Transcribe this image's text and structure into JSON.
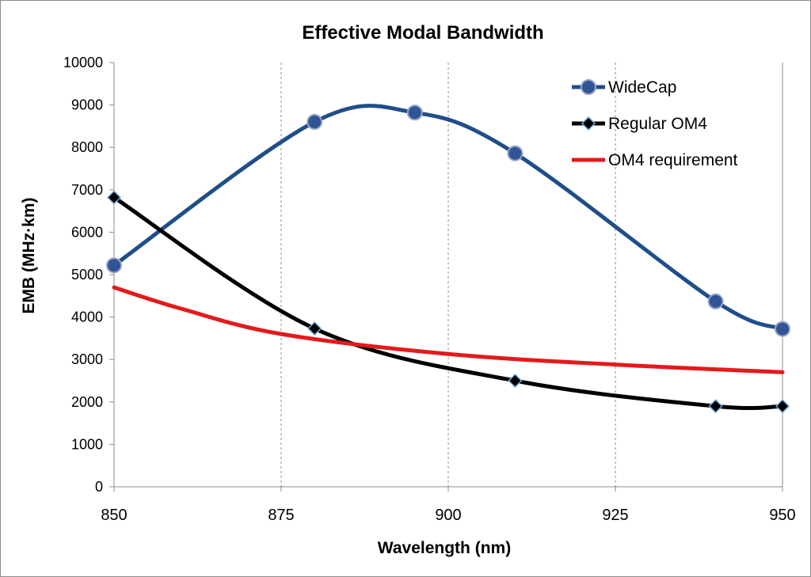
{
  "chart_data": {
    "type": "line",
    "title": "Effective Modal Bandwidth",
    "xlabel": "Wavelength (nm)",
    "ylabel": "EMB (MHz·km)",
    "xlim": [
      850,
      950
    ],
    "ylim": [
      0,
      10000
    ],
    "x_ticks": [
      850,
      875,
      900,
      925,
      950
    ],
    "y_ticks": [
      0,
      1000,
      2000,
      3000,
      4000,
      5000,
      6000,
      7000,
      8000,
      9000,
      10000
    ],
    "grid": "vertical dashed",
    "legend_position": "top-right",
    "series": [
      {
        "name": "WideCap",
        "color": "#1f4e89",
        "marker": "circle",
        "smooth": true,
        "points": [
          [
            850,
            5220
          ],
          [
            880,
            8600
          ],
          [
            895,
            8820
          ],
          [
            910,
            7860
          ],
          [
            940,
            4370
          ],
          [
            950,
            3720
          ]
        ]
      },
      {
        "name": "Regular OM4",
        "color": "#000000",
        "marker": "diamond",
        "smooth": true,
        "points": [
          [
            850,
            6820
          ],
          [
            880,
            3730
          ],
          [
            910,
            2500
          ],
          [
            940,
            1900
          ],
          [
            950,
            1900
          ]
        ]
      },
      {
        "name": "OM4 requirement",
        "color": "#e31a1c",
        "marker": "none",
        "smooth": true,
        "points": [
          [
            850,
            4700
          ],
          [
            860,
            4200
          ],
          [
            875,
            3600
          ],
          [
            900,
            3130
          ],
          [
            925,
            2880
          ],
          [
            950,
            2700
          ]
        ]
      }
    ]
  }
}
